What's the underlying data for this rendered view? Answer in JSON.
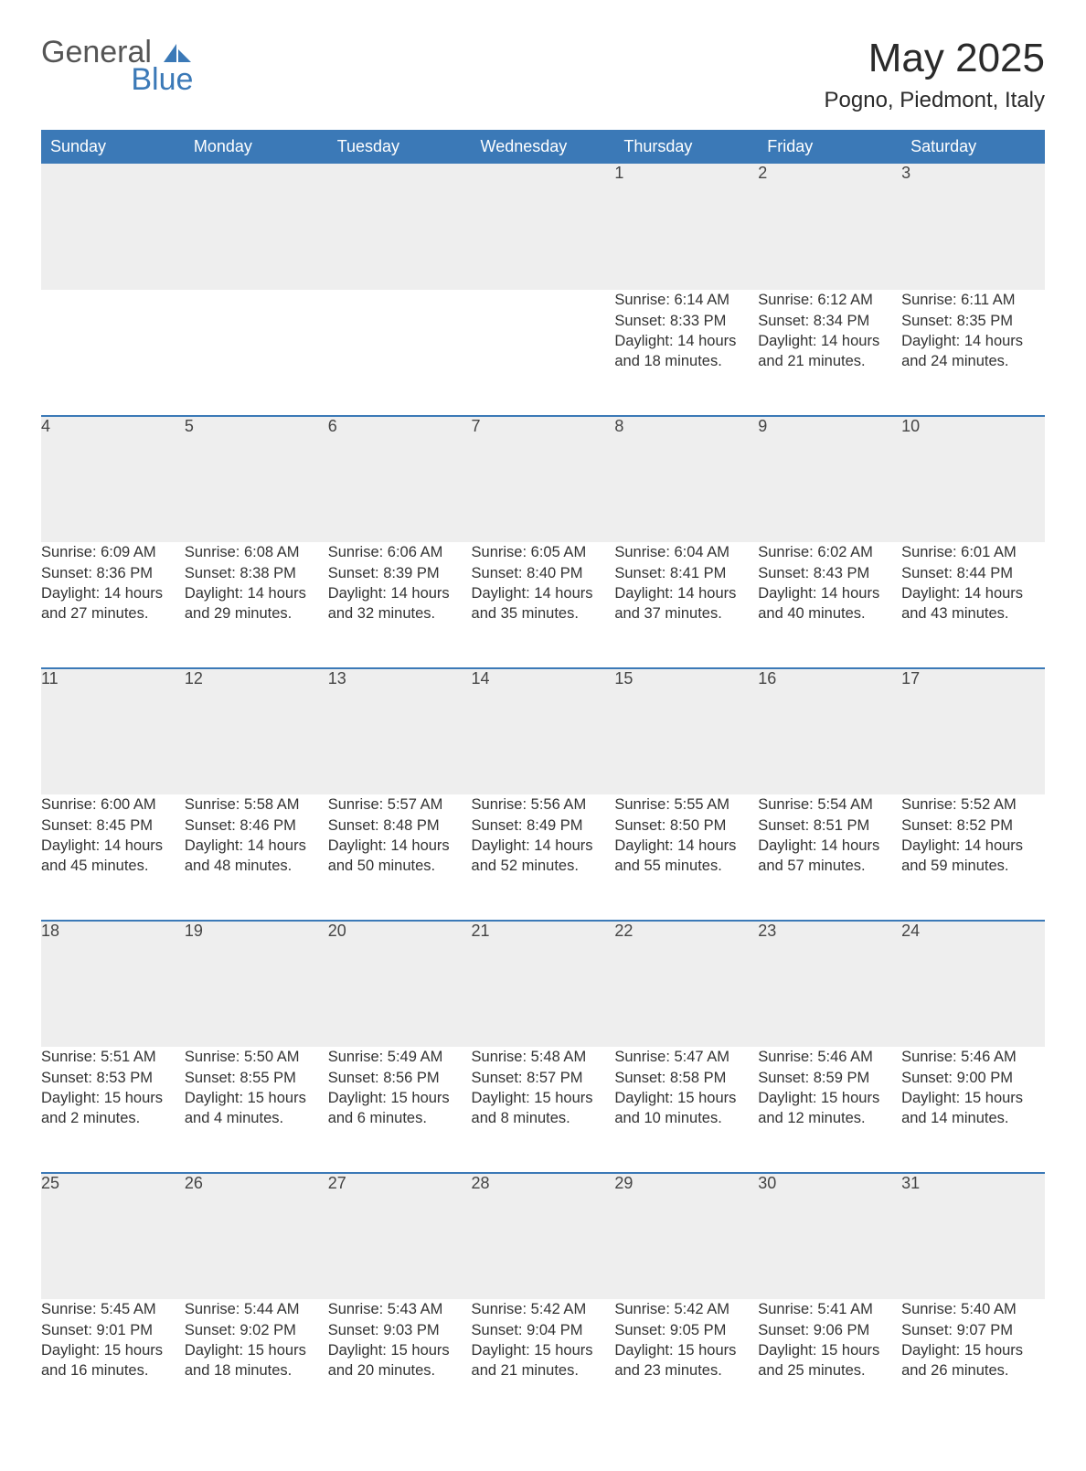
{
  "brand": {
    "word1": "General",
    "word2": "Blue"
  },
  "colors": {
    "brand_blue": "#3b79b7",
    "header_text": "#ffffff",
    "daynum_bg": "#eeeeee",
    "text": "#333333",
    "title": "#2a2a2a",
    "page_bg": "#ffffff"
  },
  "title": "May 2025",
  "location": "Pogno, Piedmont, Italy",
  "weekdays": [
    "Sunday",
    "Monday",
    "Tuesday",
    "Wednesday",
    "Thursday",
    "Friday",
    "Saturday"
  ],
  "labels": {
    "sunrise": "Sunrise: ",
    "sunset": "Sunset: ",
    "daylight": "Daylight: "
  },
  "weeks": [
    [
      null,
      null,
      null,
      null,
      {
        "n": "1",
        "sunrise": "6:14 AM",
        "sunset": "8:33 PM",
        "daylight": "14 hours and 18 minutes."
      },
      {
        "n": "2",
        "sunrise": "6:12 AM",
        "sunset": "8:34 PM",
        "daylight": "14 hours and 21 minutes."
      },
      {
        "n": "3",
        "sunrise": "6:11 AM",
        "sunset": "8:35 PM",
        "daylight": "14 hours and 24 minutes."
      }
    ],
    [
      {
        "n": "4",
        "sunrise": "6:09 AM",
        "sunset": "8:36 PM",
        "daylight": "14 hours and 27 minutes."
      },
      {
        "n": "5",
        "sunrise": "6:08 AM",
        "sunset": "8:38 PM",
        "daylight": "14 hours and 29 minutes."
      },
      {
        "n": "6",
        "sunrise": "6:06 AM",
        "sunset": "8:39 PM",
        "daylight": "14 hours and 32 minutes."
      },
      {
        "n": "7",
        "sunrise": "6:05 AM",
        "sunset": "8:40 PM",
        "daylight": "14 hours and 35 minutes."
      },
      {
        "n": "8",
        "sunrise": "6:04 AM",
        "sunset": "8:41 PM",
        "daylight": "14 hours and 37 minutes."
      },
      {
        "n": "9",
        "sunrise": "6:02 AM",
        "sunset": "8:43 PM",
        "daylight": "14 hours and 40 minutes."
      },
      {
        "n": "10",
        "sunrise": "6:01 AM",
        "sunset": "8:44 PM",
        "daylight": "14 hours and 43 minutes."
      }
    ],
    [
      {
        "n": "11",
        "sunrise": "6:00 AM",
        "sunset": "8:45 PM",
        "daylight": "14 hours and 45 minutes."
      },
      {
        "n": "12",
        "sunrise": "5:58 AM",
        "sunset": "8:46 PM",
        "daylight": "14 hours and 48 minutes."
      },
      {
        "n": "13",
        "sunrise": "5:57 AM",
        "sunset": "8:48 PM",
        "daylight": "14 hours and 50 minutes."
      },
      {
        "n": "14",
        "sunrise": "5:56 AM",
        "sunset": "8:49 PM",
        "daylight": "14 hours and 52 minutes."
      },
      {
        "n": "15",
        "sunrise": "5:55 AM",
        "sunset": "8:50 PM",
        "daylight": "14 hours and 55 minutes."
      },
      {
        "n": "16",
        "sunrise": "5:54 AM",
        "sunset": "8:51 PM",
        "daylight": "14 hours and 57 minutes."
      },
      {
        "n": "17",
        "sunrise": "5:52 AM",
        "sunset": "8:52 PM",
        "daylight": "14 hours and 59 minutes."
      }
    ],
    [
      {
        "n": "18",
        "sunrise": "5:51 AM",
        "sunset": "8:53 PM",
        "daylight": "15 hours and 2 minutes."
      },
      {
        "n": "19",
        "sunrise": "5:50 AM",
        "sunset": "8:55 PM",
        "daylight": "15 hours and 4 minutes."
      },
      {
        "n": "20",
        "sunrise": "5:49 AM",
        "sunset": "8:56 PM",
        "daylight": "15 hours and 6 minutes."
      },
      {
        "n": "21",
        "sunrise": "5:48 AM",
        "sunset": "8:57 PM",
        "daylight": "15 hours and 8 minutes."
      },
      {
        "n": "22",
        "sunrise": "5:47 AM",
        "sunset": "8:58 PM",
        "daylight": "15 hours and 10 minutes."
      },
      {
        "n": "23",
        "sunrise": "5:46 AM",
        "sunset": "8:59 PM",
        "daylight": "15 hours and 12 minutes."
      },
      {
        "n": "24",
        "sunrise": "5:46 AM",
        "sunset": "9:00 PM",
        "daylight": "15 hours and 14 minutes."
      }
    ],
    [
      {
        "n": "25",
        "sunrise": "5:45 AM",
        "sunset": "9:01 PM",
        "daylight": "15 hours and 16 minutes."
      },
      {
        "n": "26",
        "sunrise": "5:44 AM",
        "sunset": "9:02 PM",
        "daylight": "15 hours and 18 minutes."
      },
      {
        "n": "27",
        "sunrise": "5:43 AM",
        "sunset": "9:03 PM",
        "daylight": "15 hours and 20 minutes."
      },
      {
        "n": "28",
        "sunrise": "5:42 AM",
        "sunset": "9:04 PM",
        "daylight": "15 hours and 21 minutes."
      },
      {
        "n": "29",
        "sunrise": "5:42 AM",
        "sunset": "9:05 PM",
        "daylight": "15 hours and 23 minutes."
      },
      {
        "n": "30",
        "sunrise": "5:41 AM",
        "sunset": "9:06 PM",
        "daylight": "15 hours and 25 minutes."
      },
      {
        "n": "31",
        "sunrise": "5:40 AM",
        "sunset": "9:07 PM",
        "daylight": "15 hours and 26 minutes."
      }
    ]
  ]
}
